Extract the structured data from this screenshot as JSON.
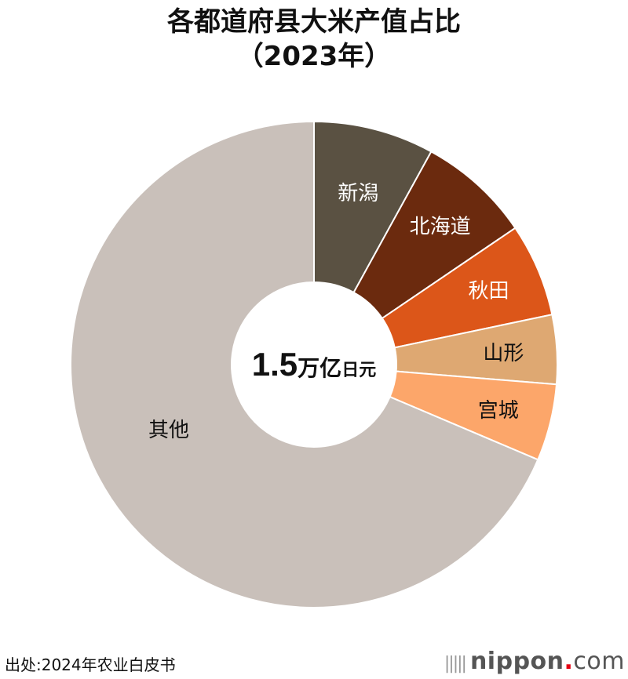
{
  "chart_data": {
    "type": "pie",
    "title": "各都道府县大米产值占比",
    "subtitle": "（2023年）",
    "center_label": {
      "value": "1.5",
      "unit_big": "万亿",
      "unit_small": "日元"
    },
    "unit": "%",
    "categories": [
      "新潟",
      "北海道",
      "秋田",
      "山形",
      "宫城",
      "其他"
    ],
    "values": [
      8.0,
      7.5,
      6.2,
      4.6,
      5.1,
      68.6
    ],
    "colors": [
      "#5a5142",
      "#6b2a0e",
      "#dc5619",
      "#dea872",
      "#fca66a",
      "#c9c0ba"
    ],
    "label_colors": [
      "#ffffff",
      "#ffffff",
      "#ffffff",
      "#111111",
      "#111111",
      "#111111"
    ],
    "legend": "none"
  },
  "footer": {
    "source": "出处:2024年农业白皮书",
    "logo_main": "nippon",
    "logo_dot": ".",
    "logo_tail": "com"
  }
}
